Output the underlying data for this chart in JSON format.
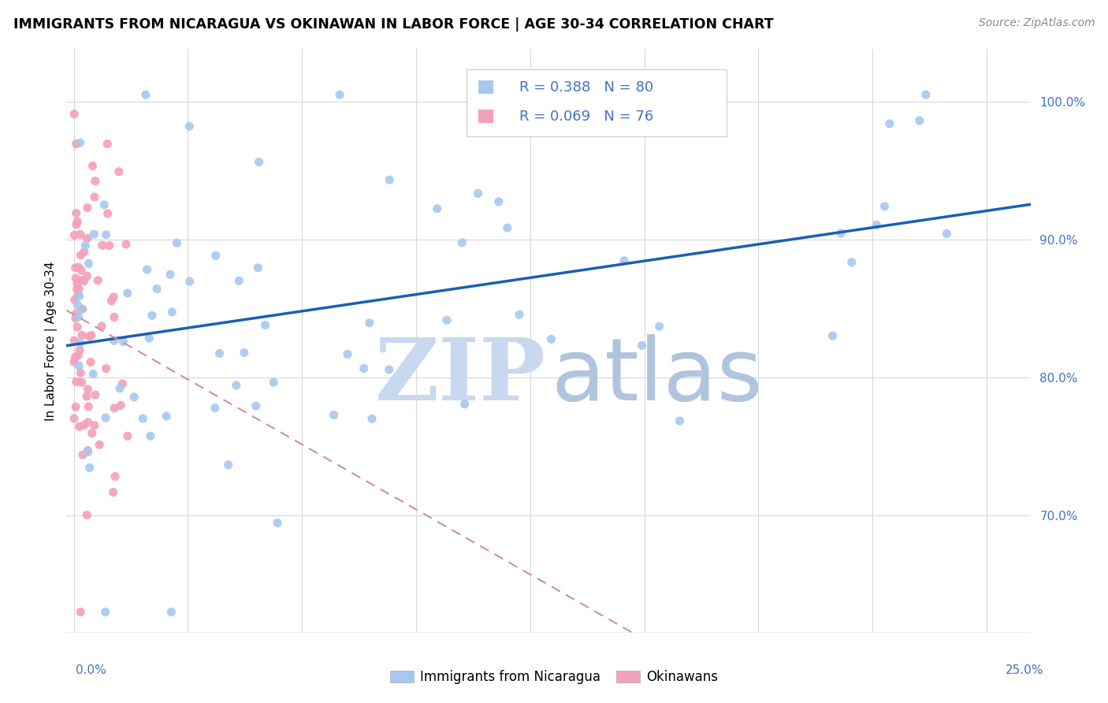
{
  "title": "IMMIGRANTS FROM NICARAGUA VS OKINAWAN IN LABOR FORCE | AGE 30-34 CORRELATION CHART",
  "source": "Source: ZipAtlas.com",
  "ylabel": "In Labor Force | Age 30-34",
  "y_min": 0.615,
  "y_max": 1.038,
  "x_min": -0.002,
  "x_max": 0.262,
  "blue_R": 0.388,
  "blue_N": 80,
  "pink_R": 0.069,
  "pink_N": 76,
  "blue_color": "#a8c8f0",
  "pink_color": "#f4a0b8",
  "blue_line_color": "#1a5fb4",
  "pink_line_color": "#d0909a",
  "tick_color": "#4472c4",
  "watermark_ZIP_color": "#c8d8ee",
  "watermark_atlas_color": "#b0c4de",
  "yticks": [
    0.7,
    0.8,
    0.9,
    1.0
  ],
  "ytick_labels": [
    "70.0%",
    "80.0%",
    "90.0%",
    "100.0%"
  ],
  "blue_line_x0": 0.0,
  "blue_line_y0": 0.836,
  "blue_line_x1": 0.252,
  "blue_line_y1": 1.005,
  "pink_line_x0": 0.0,
  "pink_line_y0": 0.841,
  "pink_line_x1": 0.025,
  "pink_line_y1": 0.848,
  "seed": 17
}
